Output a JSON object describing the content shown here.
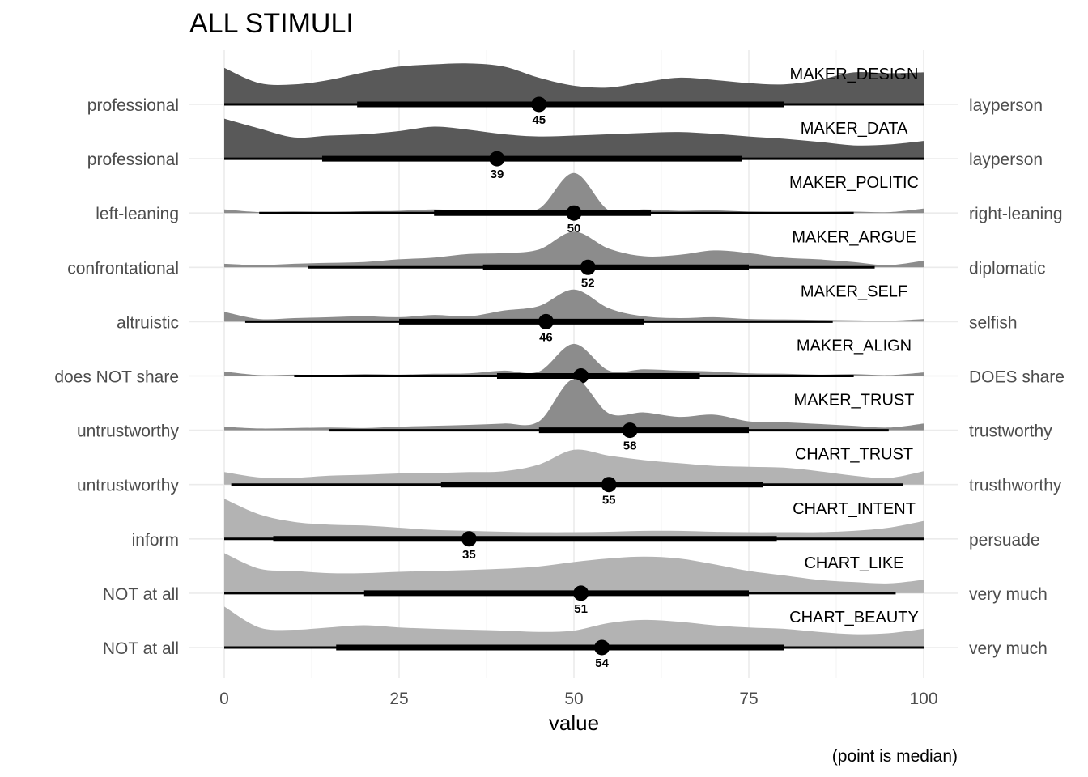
{
  "chart_data": {
    "type": "ridgeline",
    "title": "ALL STIMULI",
    "xlabel": "value",
    "caption": "(point is median)",
    "xlim": [
      0,
      100
    ],
    "xticks": [
      0,
      25,
      50,
      75,
      100
    ],
    "grid": true,
    "colors": {
      "maker_dark": "#595959",
      "maker_mid": "#8c8c8c",
      "chart_light": "#b3b3b3",
      "line": "#000000"
    },
    "density_x": [
      0,
      5,
      10,
      15,
      20,
      25,
      30,
      35,
      40,
      45,
      50,
      55,
      60,
      65,
      70,
      75,
      80,
      85,
      90,
      95,
      100
    ],
    "series": [
      {
        "name": "MAKER_DESIGN",
        "left": "professional",
        "right": "layperson",
        "shade": "maker_dark",
        "median": 45,
        "inner": [
          19,
          80
        ],
        "outer": [
          0,
          100
        ],
        "density": [
          0.82,
          0.48,
          0.45,
          0.55,
          0.72,
          0.85,
          0.9,
          0.92,
          0.85,
          0.6,
          0.42,
          0.38,
          0.5,
          0.6,
          0.55,
          0.48,
          0.45,
          0.55,
          0.72,
          0.7,
          0.72
        ]
      },
      {
        "name": "MAKER_DATA",
        "left": "professional",
        "right": "layperson",
        "shade": "maker_dark",
        "median": 39,
        "inner": [
          14,
          74
        ],
        "outer": [
          0,
          100
        ],
        "density": [
          0.9,
          0.68,
          0.48,
          0.52,
          0.55,
          0.62,
          0.72,
          0.65,
          0.55,
          0.5,
          0.52,
          0.55,
          0.58,
          0.6,
          0.56,
          0.5,
          0.45,
          0.38,
          0.3,
          0.32,
          0.4
        ]
      },
      {
        "name": "MAKER_POLITIC",
        "left": "left-leaning",
        "right": "right-leaning",
        "shade": "maker_mid",
        "median": 50,
        "inner": [
          30,
          61
        ],
        "outer": [
          5,
          90
        ],
        "density": [
          0.08,
          0.02,
          0.03,
          0.02,
          0.04,
          0.05,
          0.08,
          0.05,
          0.06,
          0.1,
          0.9,
          0.06,
          0.08,
          0.05,
          0.06,
          0.03,
          0.02,
          0.02,
          0.03,
          0.02,
          0.1
        ]
      },
      {
        "name": "MAKER_ARGUE",
        "left": "confrontational",
        "right": "diplomatic",
        "shade": "maker_mid",
        "median": 52,
        "inner": [
          37,
          75
        ],
        "outer": [
          12,
          93
        ],
        "density": [
          0.08,
          0.05,
          0.08,
          0.1,
          0.12,
          0.18,
          0.22,
          0.3,
          0.32,
          0.4,
          0.8,
          0.42,
          0.25,
          0.28,
          0.38,
          0.32,
          0.22,
          0.18,
          0.12,
          0.05,
          0.15
        ]
      },
      {
        "name": "MAKER_SELF",
        "left": "altruistic",
        "right": "selfish",
        "shade": "maker_mid",
        "median": 46,
        "inner": [
          25,
          60
        ],
        "outer": [
          3,
          87
        ],
        "density": [
          0.22,
          0.06,
          0.08,
          0.1,
          0.12,
          0.1,
          0.15,
          0.12,
          0.25,
          0.35,
          0.72,
          0.3,
          0.12,
          0.08,
          0.1,
          0.06,
          0.05,
          0.04,
          0.03,
          0.02,
          0.06
        ]
      },
      {
        "name": "MAKER_ALIGN",
        "left": "does NOT share",
        "right": "DOES share",
        "shade": "maker_mid",
        "median": 51,
        "inner": [
          39,
          68
        ],
        "outer": [
          10,
          90
        ],
        "density": [
          0.1,
          0.02,
          0.03,
          0.02,
          0.04,
          0.03,
          0.05,
          0.06,
          0.12,
          0.1,
          0.72,
          0.12,
          0.15,
          0.12,
          0.1,
          0.06,
          0.05,
          0.03,
          0.04,
          0.02,
          0.08
        ]
      },
      {
        "name": "MAKER_TRUST",
        "left": "untrustworthy",
        "right": "trustworthy",
        "shade": "maker_mid",
        "median": 58,
        "inner": [
          45,
          75
        ],
        "outer": [
          15,
          95
        ],
        "density": [
          0.08,
          0.04,
          0.05,
          0.06,
          0.05,
          0.08,
          0.1,
          0.12,
          0.15,
          0.2,
          1.15,
          0.38,
          0.4,
          0.3,
          0.35,
          0.2,
          0.18,
          0.14,
          0.1,
          0.06,
          0.15
        ]
      },
      {
        "name": "CHART_TRUST",
        "left": "untrustworthy",
        "right": "trusthworthy",
        "shade": "chart_light",
        "median": 55,
        "inner": [
          31,
          77
        ],
        "outer": [
          1,
          97
        ],
        "density": [
          0.28,
          0.16,
          0.15,
          0.2,
          0.22,
          0.25,
          0.26,
          0.28,
          0.3,
          0.45,
          0.78,
          0.65,
          0.55,
          0.48,
          0.42,
          0.4,
          0.38,
          0.3,
          0.2,
          0.15,
          0.3
        ]
      },
      {
        "name": "CHART_INTENT",
        "left": "inform",
        "right": "persuade",
        "shade": "chart_light",
        "median": 35,
        "inner": [
          7,
          79
        ],
        "outer": [
          0,
          100
        ],
        "density": [
          0.9,
          0.55,
          0.38,
          0.32,
          0.3,
          0.25,
          0.2,
          0.18,
          0.16,
          0.15,
          0.15,
          0.16,
          0.18,
          0.18,
          0.16,
          0.15,
          0.15,
          0.15,
          0.18,
          0.25,
          0.4
        ]
      },
      {
        "name": "CHART_LIKE",
        "left": "NOT at all",
        "right": "very much",
        "shade": "chart_light",
        "median": 51,
        "inner": [
          20,
          75
        ],
        "outer": [
          0,
          96
        ],
        "density": [
          0.9,
          0.55,
          0.5,
          0.45,
          0.45,
          0.48,
          0.5,
          0.52,
          0.55,
          0.6,
          0.7,
          0.78,
          0.82,
          0.78,
          0.65,
          0.5,
          0.4,
          0.3,
          0.25,
          0.22,
          0.3
        ]
      },
      {
        "name": "CHART_BEAUTY",
        "left": "NOT at all",
        "right": "very much",
        "shade": "chart_light",
        "median": 54,
        "inner": [
          16,
          80
        ],
        "outer": [
          0,
          100
        ],
        "density": [
          0.92,
          0.45,
          0.4,
          0.45,
          0.5,
          0.45,
          0.42,
          0.4,
          0.38,
          0.35,
          0.38,
          0.55,
          0.62,
          0.58,
          0.5,
          0.45,
          0.42,
          0.35,
          0.3,
          0.32,
          0.42
        ]
      }
    ]
  }
}
